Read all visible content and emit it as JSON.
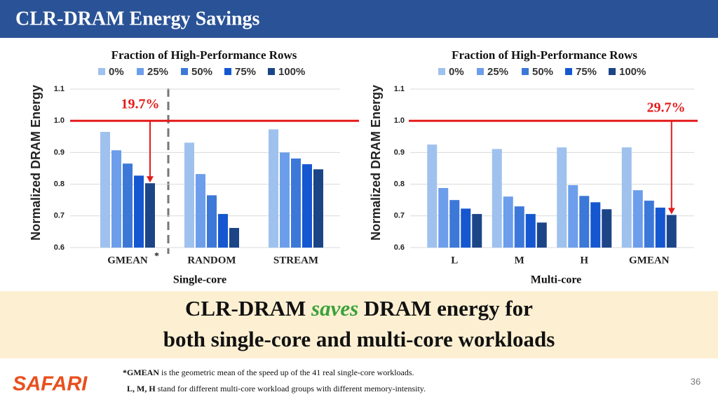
{
  "slide_title": "CLR-DRAM Energy Savings",
  "chart_data": [
    {
      "type": "bar",
      "legend_title": "Fraction of High-Performance Rows",
      "y_label": "Normalized DRAM Energy",
      "x_label": "Single-core",
      "categories": [
        "GMEAN",
        "RANDOM",
        "STREAM"
      ],
      "category_marker": "*",
      "series": [
        {
          "name": "0%",
          "color": "#9fc1ee",
          "values": [
            0.965,
            0.931,
            0.973
          ]
        },
        {
          "name": "25%",
          "color": "#6d9eeb",
          "values": [
            0.907,
            0.832,
            0.9
          ]
        },
        {
          "name": "50%",
          "color": "#3c78d8",
          "values": [
            0.865,
            0.765,
            0.881
          ]
        },
        {
          "name": "75%",
          "color": "#1557d0",
          "values": [
            0.827,
            0.706,
            0.863
          ]
        },
        {
          "name": "100%",
          "color": "#1c4587",
          "values": [
            0.803,
            0.662,
            0.847
          ]
        }
      ],
      "ylim": [
        0.6,
        1.1
      ],
      "yticks": [
        0.6,
        0.7,
        0.8,
        0.9,
        {
          "value": 1,
          "label": "1.0"
        },
        1.1
      ],
      "grid": true,
      "reference_line": {
        "value": 1,
        "color": "#e31b1b"
      },
      "annotation": "19.7%"
    },
    {
      "type": "bar",
      "legend_title": "Fraction of High-Performance Rows",
      "y_label": "Normalized DRAM Energy",
      "x_label": "Multi-core",
      "categories": [
        "L",
        "M",
        "H",
        "GMEAN"
      ],
      "series": [
        {
          "name": "0%",
          "color": "#9fc1ee",
          "values": [
            0.925,
            0.911,
            0.916,
            0.916
          ]
        },
        {
          "name": "25%",
          "color": "#6d9eeb",
          "values": [
            0.788,
            0.761,
            0.797,
            0.781
          ]
        },
        {
          "name": "50%",
          "color": "#3c78d8",
          "values": [
            0.75,
            0.73,
            0.763,
            0.748
          ]
        },
        {
          "name": "75%",
          "color": "#1557d0",
          "values": [
            0.723,
            0.706,
            0.743,
            0.726
          ]
        },
        {
          "name": "100%",
          "color": "#1c4587",
          "values": [
            0.706,
            0.679,
            0.721,
            0.703
          ]
        }
      ],
      "ylim": [
        0.6,
        1.1
      ],
      "yticks": [
        0.6,
        0.7,
        0.8,
        0.9,
        {
          "value": 1,
          "label": "1.0"
        },
        1.1
      ],
      "grid": true,
      "reference_line": {
        "value": 1,
        "color": "#e31b1b"
      },
      "annotation": "29.7%"
    }
  ],
  "takeaway": {
    "before": "CLR-DRAM ",
    "emphasis": "saves",
    "after": " DRAM energy for",
    "line2": "both single-core and multi-core workloads"
  },
  "footnotes": [
    {
      "term": "*GMEAN",
      "text": " is the geometric mean of the speed up of the 41 real single-core workloads."
    },
    {
      "term": "L, M, H",
      "text": " stand for different multi-core workload groups with different memory-intensity."
    }
  ],
  "logo": "SAFARI",
  "page_number": "36"
}
